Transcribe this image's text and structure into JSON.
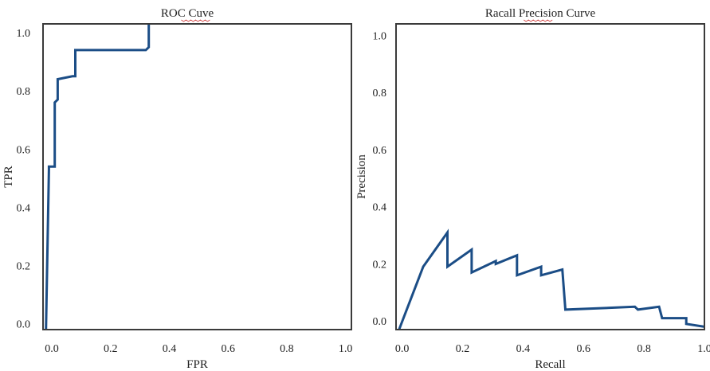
{
  "colors": {
    "curve": "#1b4d86",
    "frame": "#3a3a3a",
    "text": "#222222"
  },
  "chart_data": [
    {
      "type": "line",
      "title": "ROC Cuve",
      "xlabel": "FPR",
      "ylabel": "TPR",
      "xlim": [
        -0.03,
        1.02
      ],
      "ylim": [
        -0.02,
        1.03
      ],
      "xticks": [
        "0.0",
        "0.2",
        "0.4",
        "0.6",
        "0.8",
        "1.0"
      ],
      "yticks": [
        "0.0",
        "0.2",
        "0.4",
        "0.6",
        "0.8",
        "1.0"
      ],
      "series": [
        {
          "x": [
            -0.02,
            -0.01,
            -0.01,
            0.01,
            0.01,
            0.02,
            0.02,
            0.07,
            0.08,
            0.08,
            0.32,
            0.33,
            0.33
          ],
          "y": [
            -0.02,
            0.53,
            0.54,
            0.54,
            0.76,
            0.77,
            0.84,
            0.85,
            0.85,
            0.94,
            0.94,
            0.95,
            1.03
          ]
        }
      ]
    },
    {
      "type": "line",
      "title": "Racall Precision Curve",
      "xlabel": "Recall",
      "ylabel": "Precision",
      "xlim": [
        -0.02,
        1.0
      ],
      "ylim": [
        -0.03,
        1.04
      ],
      "xticks": [
        "0.0",
        "0.2",
        "0.4",
        "0.6",
        "0.8",
        "1.0"
      ],
      "yticks": [
        "0.0",
        "0.2",
        "0.4",
        "0.6",
        "0.8",
        "1.0"
      ],
      "series": [
        {
          "x": [
            -0.01,
            0.07,
            0.15,
            0.15,
            0.23,
            0.23,
            0.31,
            0.31,
            0.38,
            0.38,
            0.46,
            0.46,
            0.53,
            0.54,
            0.77,
            0.78,
            0.85,
            0.86,
            0.94,
            0.94,
            1.0
          ],
          "y": [
            -0.03,
            0.19,
            0.31,
            0.19,
            0.25,
            0.17,
            0.21,
            0.2,
            0.23,
            0.16,
            0.19,
            0.16,
            0.18,
            0.04,
            0.05,
            0.04,
            0.05,
            0.01,
            0.01,
            -0.01,
            -0.02
          ]
        }
      ]
    }
  ]
}
